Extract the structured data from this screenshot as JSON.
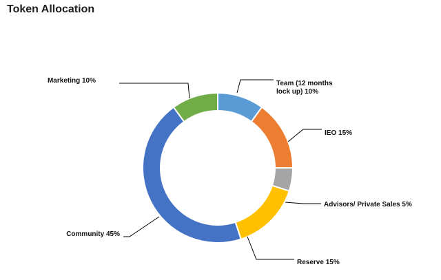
{
  "chart_data": {
    "type": "pie",
    "title": "Token Allocation",
    "variant": "donut",
    "slices": [
      {
        "label": [
          "Team (12 months",
          "lock up) 10%"
        ],
        "value": 10,
        "color": "#5b9bd5"
      },
      {
        "label": [
          "IEO 15%"
        ],
        "value": 15,
        "color": "#ed7d31"
      },
      {
        "label": [
          "Advisors/ Private Sales 5%"
        ],
        "value": 5,
        "color": "#a5a5a5"
      },
      {
        "label": [
          "Reserve 15%"
        ],
        "value": 15,
        "color": "#ffc000"
      },
      {
        "label": [
          "Community 45%"
        ],
        "value": 45,
        "color": "#4472c4"
      },
      {
        "label": [
          "Marketing 10%"
        ],
        "value": 10,
        "color": "#70ad47"
      }
    ],
    "start_angle_deg": 0,
    "direction": "clockwise"
  }
}
